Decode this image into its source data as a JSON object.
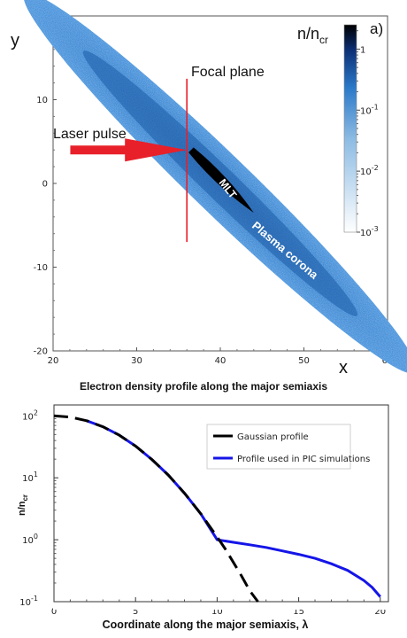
{
  "chart_data": [
    {
      "type": "heatmap",
      "panel_label": "a)",
      "title": "",
      "xlabel": "x",
      "ylabel": "y",
      "xlim": [
        20,
        60
      ],
      "ylim": [
        -20,
        20
      ],
      "xticks": [
        "20",
        "30",
        "40",
        "50",
        "60"
      ],
      "yticks": [
        "20",
        "10",
        "0",
        "-10",
        "-20"
      ],
      "colorbar": {
        "label_main": "n/n",
        "label_sub": "cr",
        "scale": "log",
        "range": [
          0.001,
          2.5
        ],
        "ticks": [
          {
            "value": 1,
            "label": "1"
          },
          {
            "value": 0.1,
            "label": "10",
            "exp": "-1"
          },
          {
            "value": 0.01,
            "label": "10",
            "exp": "-2"
          },
          {
            "value": 0.001,
            "label": "10",
            "exp": "-3"
          }
        ],
        "colors": [
          "#ffffff",
          "#2a78c8",
          "#000000"
        ]
      },
      "ellipse": {
        "center": [
          40,
          0
        ],
        "semi_major": 32.5,
        "semi_minor": 3.5,
        "angle_deg": -44
      },
      "dense_core": {
        "from": [
          36.5,
          4
        ],
        "to": [
          44,
          -3.5
        ]
      },
      "focal_plane_x": 36,
      "focal_plane_y": [
        -7,
        12.5
      ],
      "laser_arrow": {
        "from": [
          21,
          4
        ],
        "to": [
          36,
          4
        ]
      },
      "annotations": {
        "focal_plane": "Focal plane",
        "laser": "Laser pulse",
        "mlt": "MLT",
        "corona": "Plasma corona"
      },
      "colors": {
        "arrow": "#e8202a",
        "focal_line": "#e8202a",
        "plasma": "#2a78c8"
      }
    },
    {
      "type": "line",
      "panel_label": "b)",
      "title": "Electron density profile along the major semiaxis",
      "xlabel": "Coordinate along the major semiaxis, λ",
      "ylabel_main": "n/n",
      "ylabel_sub": "cr",
      "xlim": [
        0,
        20.5
      ],
      "ylim": [
        0.1,
        150
      ],
      "yscale": "log",
      "xticks": [
        0,
        5,
        10,
        15,
        20
      ],
      "yticks": [
        {
          "value": 100,
          "label": "10",
          "exp": "2"
        },
        {
          "value": 10,
          "label": "10",
          "exp": "1"
        },
        {
          "value": 1,
          "label": "10",
          "exp": "0"
        },
        {
          "value": 0.1,
          "label": "10",
          "exp": "-1"
        }
      ],
      "legend_position": "upper-right",
      "series": [
        {
          "name": "Gaussian profile",
          "style": "dashed",
          "color": "#000000",
          "x": [
            0,
            1,
            2,
            3,
            4,
            5,
            6,
            7,
            8,
            9,
            10,
            10.5,
            11,
            11.5,
            12,
            12.5
          ],
          "y": [
            100,
            95.6,
            83.5,
            66.7,
            48.7,
            32.5,
            19.8,
            11.1,
            5.64,
            2.62,
            1.11,
            0.71,
            0.43,
            0.26,
            0.15,
            0.085
          ]
        },
        {
          "name": "Profile used in PIC simulations",
          "style": "solid",
          "color": "#1515e8",
          "x": [
            2,
            3,
            4,
            5,
            6,
            7,
            8,
            9,
            10,
            11,
            12,
            13,
            14,
            15,
            16,
            17,
            18,
            19,
            19.5,
            20
          ],
          "y": [
            83.5,
            66.7,
            48.7,
            32.5,
            19.8,
            11.1,
            5.64,
            2.62,
            1.0,
            0.91,
            0.83,
            0.75,
            0.66,
            0.58,
            0.5,
            0.41,
            0.32,
            0.22,
            0.17,
            0.12
          ]
        }
      ]
    }
  ]
}
